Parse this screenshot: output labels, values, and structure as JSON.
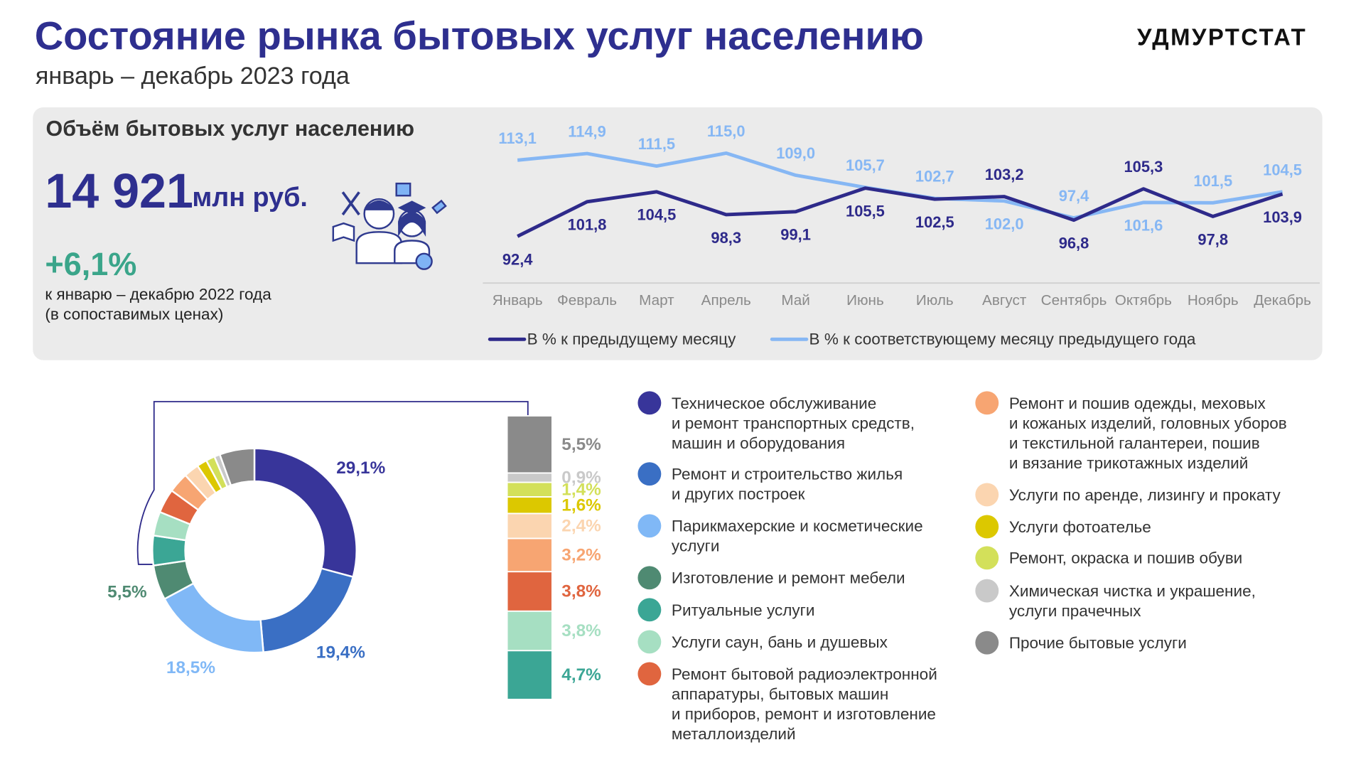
{
  "header": {
    "title": "Состояние рынка бытовых услуг населению",
    "subtitle": "январь – декабрь 2023 года",
    "logo": "УДМУРТСТАТ"
  },
  "summary": {
    "title": "Объём бытовых услуг населению",
    "value": "14 921",
    "unit": "млн руб.",
    "change": "+6,1%",
    "note": [
      "к январю – декабрю 2022 года",
      "(в сопоставимых ценах)"
    ]
  },
  "chart_data": [
    {
      "type": "line",
      "categories": [
        "Январь",
        "Февраль",
        "Март",
        "Апрель",
        "Май",
        "Июнь",
        "Июль",
        "Август",
        "Сентябрь",
        "Октябрь",
        "Ноябрь",
        "Декабрь"
      ],
      "ylim": [
        88,
        120
      ],
      "grid": false,
      "series": [
        {
          "name": "В % к предыдущему месяцу",
          "color": "#2e2a8a",
          "values": [
            92.4,
            101.8,
            104.5,
            98.3,
            99.1,
            105.5,
            102.5,
            103.2,
            96.8,
            105.3,
            97.8,
            103.9
          ],
          "value_labels": [
            "92,4",
            "101,8",
            "104,5",
            "98,3",
            "99,1",
            "105,5",
            "102,5",
            "103,2",
            "96,8",
            "105,3",
            "97,8",
            "103,9"
          ]
        },
        {
          "name": "В % к соответствующему месяцу предыдущего года",
          "color": "#86b7f4",
          "values": [
            113.1,
            114.9,
            111.5,
            115.0,
            109.0,
            105.7,
            102.7,
            102.0,
            97.4,
            101.6,
            101.5,
            104.5
          ],
          "value_labels": [
            "113,1",
            "114,9",
            "111,5",
            "115,0",
            "109,0",
            "105,7",
            "102,7",
            "102,0",
            "97,4",
            "101,6",
            "101,5",
            "104,5"
          ]
        }
      ]
    },
    {
      "type": "pie",
      "categories": [
        "Техническое обслуживание\nи ремонт транспортных средств,\nмашин и оборудования",
        "Ремонт и строительство жилья\nи других построек",
        "Парикмахерские и косметические\nуслуги",
        "Изготовление и ремонт мебели",
        "Ритуальные услуги",
        "Услуги саун, бань и душевых",
        "Ремонт бытовой радиоэлектронной\nаппаратуры, бытовых машин\nи приборов, ремонт и изготовление\nметаллоизделий",
        "Ремонт и пошив одежды, меховых\nи кожаных изделий, головных уборов\nи текстильной галантереи, пошив\nи вязание трикотажных изделий",
        "Услуги по аренде, лизингу и прокату",
        "Услуги фотоателье",
        "Ремонт, окраска и пошив обуви",
        "Химическая чистка и украшение,\nуслуги прачечных",
        "Прочие бытовые услуги"
      ],
      "values": [
        29.1,
        19.4,
        18.5,
        5.5,
        4.7,
        3.8,
        3.8,
        3.2,
        2.4,
        1.6,
        1.4,
        0.9,
        5.5
      ],
      "value_labels": [
        "29,1%",
        "19,4%",
        "18,5%",
        "5,5%",
        "4,7%",
        "3,8%",
        "3,8%",
        "3,2%",
        "2,4%",
        "1,6%",
        "1,4%",
        "0,9%",
        "5,5%"
      ],
      "colors": [
        "#38359a",
        "#3a6fc4",
        "#80b8f6",
        "#4f8a72",
        "#3ba695",
        "#a6dfc2",
        "#e0653f",
        "#f7a572",
        "#fbd5b0",
        "#dcc800",
        "#d3e05a",
        "#c9c9c9",
        "#8a8a8a"
      ]
    }
  ]
}
